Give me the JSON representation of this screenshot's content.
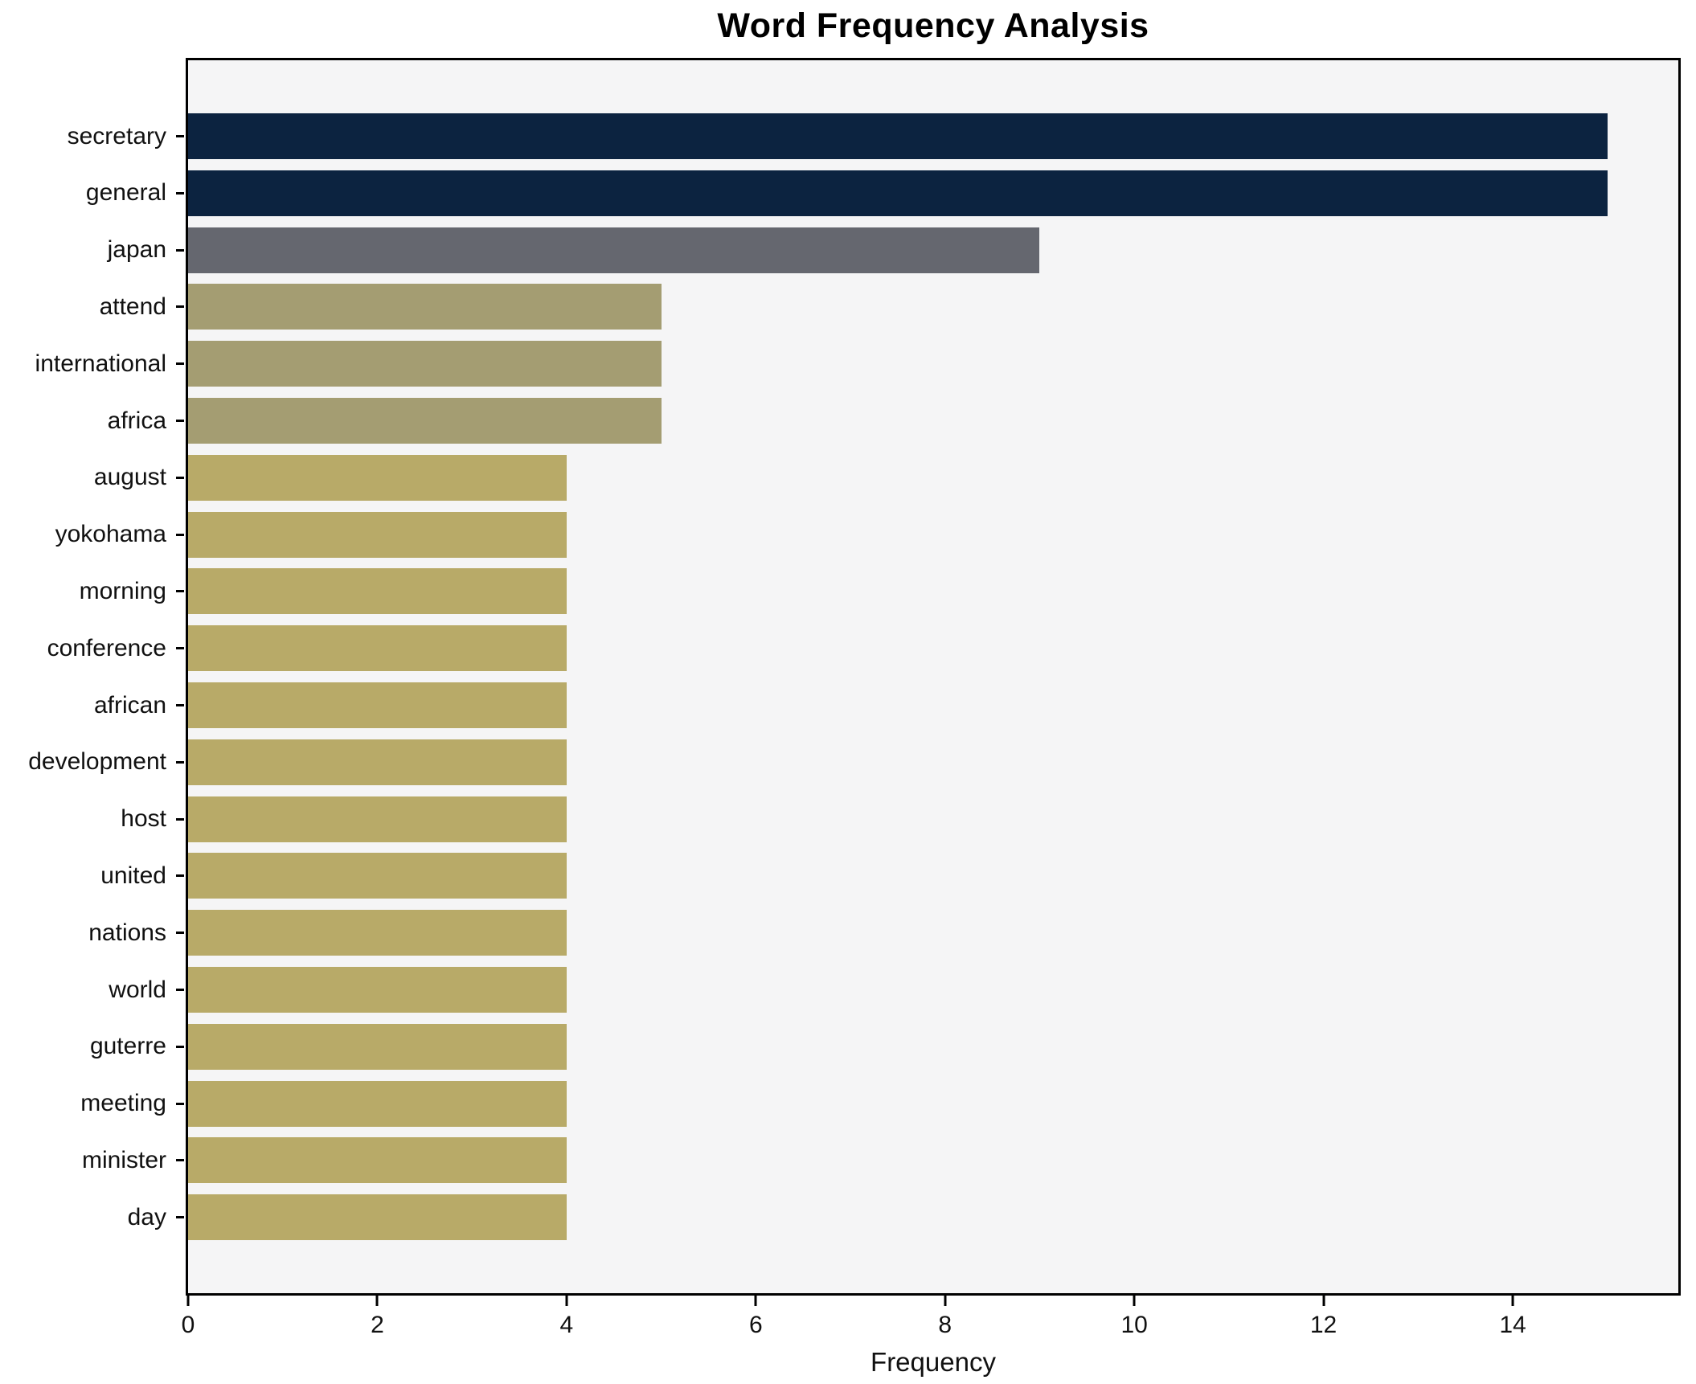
{
  "chart_data": {
    "type": "bar",
    "orientation": "horizontal",
    "title": "Word Frequency Analysis",
    "xlabel": "Frequency",
    "ylabel": "",
    "categories": [
      "secretary",
      "general",
      "japan",
      "attend",
      "international",
      "africa",
      "august",
      "yokohama",
      "morning",
      "conference",
      "african",
      "development",
      "host",
      "united",
      "nations",
      "world",
      "guterre",
      "meeting",
      "minister",
      "day"
    ],
    "values": [
      15,
      15,
      9,
      5,
      5,
      5,
      4,
      4,
      4,
      4,
      4,
      4,
      4,
      4,
      4,
      4,
      4,
      4,
      4,
      4
    ],
    "bar_colors": [
      "#0c2340",
      "#0c2340",
      "#65676f",
      "#a49d72",
      "#a49d72",
      "#a49d72",
      "#b8aa68",
      "#b8aa68",
      "#b8aa68",
      "#b8aa68",
      "#b8aa68",
      "#b8aa68",
      "#b8aa68",
      "#b8aa68",
      "#b8aa68",
      "#b8aa68",
      "#b8aa68",
      "#b8aa68",
      "#b8aa68",
      "#b8aa68"
    ],
    "xlim": [
      0,
      15.75
    ],
    "xticks": [
      0,
      2,
      4,
      6,
      8,
      10,
      12,
      14
    ],
    "grid": false,
    "legend": null,
    "colors": {
      "top_rank": "#0c2340",
      "second_rank": "#65676f",
      "third_rank": "#a49d72",
      "default_rank": "#b8aa68",
      "plot_background": "#f5f5f6",
      "figure_background": "#ffffff",
      "spine": "#000000",
      "text": "#111111"
    }
  }
}
